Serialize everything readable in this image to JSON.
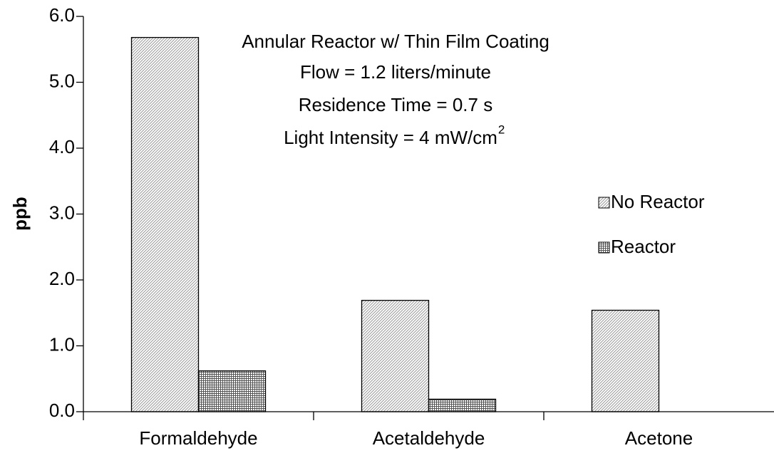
{
  "chart_data": {
    "type": "bar",
    "annotations": [
      "Annular Reactor w/ Thin Film Coating",
      "Flow = 1.2 liters/minute",
      "Residence Time = 0.7 s",
      "Light Intensity = 4 mW/cm"
    ],
    "annotation_superscript": "2",
    "ylabel": "ppb",
    "categories": [
      "Formaldehyde",
      "Acetaldehyde",
      "Acetone"
    ],
    "series": [
      {
        "name": "No Reactor",
        "color": "#bfbfbf",
        "pattern": "diagonal",
        "values": [
          5.68,
          1.69,
          1.54
        ]
      },
      {
        "name": "Reactor",
        "color": "#8c8c8c",
        "pattern": "grid",
        "values": [
          0.62,
          0.19,
          0
        ]
      }
    ],
    "ylim": [
      0,
      6
    ],
    "yticks": [
      {
        "value": 0,
        "label": "0.0"
      },
      {
        "value": 1,
        "label": "1.0"
      },
      {
        "value": 2,
        "label": "2.0"
      },
      {
        "value": 3,
        "label": "3.0"
      },
      {
        "value": 4,
        "label": "4.0"
      },
      {
        "value": 5,
        "label": "5.0"
      },
      {
        "value": 6,
        "label": "6.0"
      }
    ],
    "legend": "right"
  }
}
